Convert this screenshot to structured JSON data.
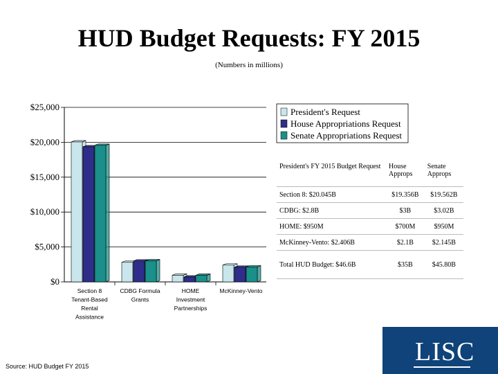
{
  "title": "HUD Budget Requests: FY 2015",
  "subtitle": "(Numbers in millions)",
  "source": "Source: HUD Budget FY 2015",
  "logo_text": "LISC",
  "colors": {
    "presidents": "#c8e6ec",
    "house": "#2e2e8a",
    "senate": "#1b8f8a",
    "logo_bg": "#0f4379"
  },
  "chart_data": {
    "type": "bar",
    "title": "",
    "xlabel": "",
    "ylabel": "",
    "categories": [
      [
        "Section 8",
        "Tenant-Based",
        "Rental",
        "Assistance"
      ],
      [
        "CDBG Formula",
        "Grants"
      ],
      [
        "HOME",
        "Investment",
        "Partnerships"
      ],
      [
        "McKinney-Vento"
      ]
    ],
    "series": [
      {
        "name": "President's Request",
        "values": [
          20045,
          2800,
          950,
          2406
        ]
      },
      {
        "name": "House Appropriations Request",
        "values": [
          19356,
          3000,
          700,
          2100
        ]
      },
      {
        "name": "Senate Appropriations Request",
        "values": [
          19562,
          3020,
          950,
          2145
        ]
      }
    ],
    "ylim": [
      0,
      25000
    ],
    "yticks": [
      "$0",
      "$5,000",
      "$10,000",
      "$15,000",
      "$20,000",
      "$25,000"
    ],
    "grid": true,
    "legend": "top-right"
  },
  "table": {
    "header": [
      "President's FY 2015 Budget Request",
      "House Approps",
      "Senate Approps"
    ],
    "rows": [
      [
        "Section 8: $20.045B",
        "$19.356B",
        "$19.562B"
      ],
      [
        "CDBG: $2.8B",
        "$3B",
        "$3.02B"
      ],
      [
        "HOME: $950M",
        "$700M",
        "$950M"
      ],
      [
        "McKinney-Vento: $2.406B",
        "$2.1B",
        "$2.145B"
      ],
      [
        "Total HUD Budget: $46.6B",
        "$35B",
        "$45.80B"
      ]
    ]
  }
}
